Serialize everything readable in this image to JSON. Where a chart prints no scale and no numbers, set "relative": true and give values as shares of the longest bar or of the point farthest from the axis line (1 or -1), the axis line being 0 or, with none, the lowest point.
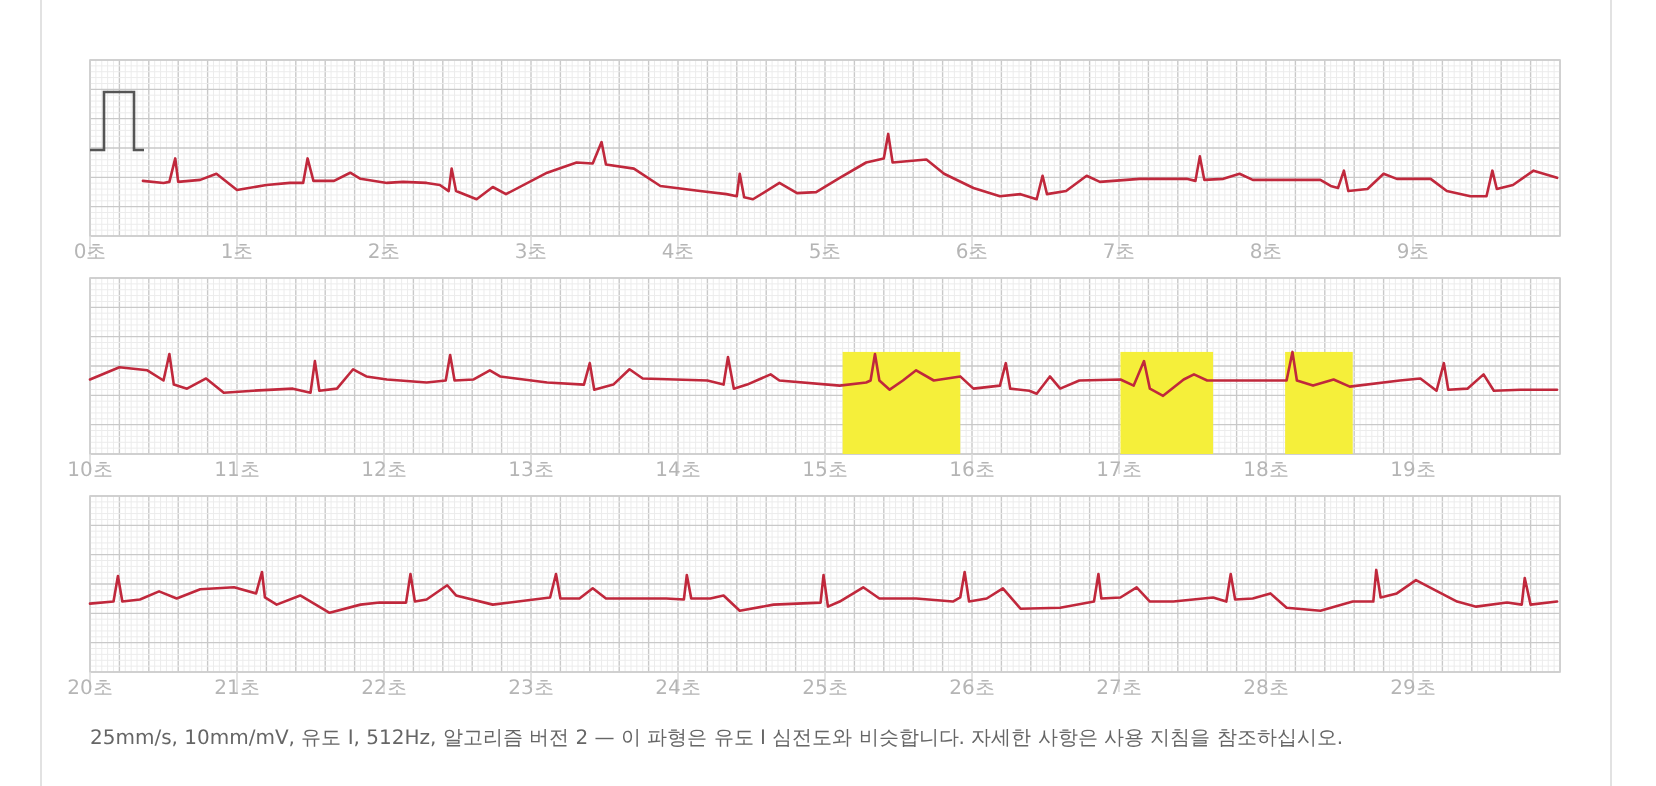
{
  "chart_data": [
    {
      "type": "line",
      "relative": true,
      "grid": true,
      "color": "#c0283c",
      "xlim": [
        0,
        10
      ],
      "xticks": [
        {
          "value": 0,
          "label": "0초"
        },
        {
          "value": 1,
          "label": "1초"
        },
        {
          "value": 2,
          "label": "2초"
        },
        {
          "value": 3,
          "label": "3초"
        },
        {
          "value": 4,
          "label": "4초"
        },
        {
          "value": 5,
          "label": "5초"
        },
        {
          "value": 6,
          "label": "6초"
        },
        {
          "value": 7,
          "label": "7초"
        },
        {
          "value": 8,
          "label": "8초"
        },
        {
          "value": 9,
          "label": "9초"
        }
      ],
      "x": [
        0.36,
        0.5,
        0.54,
        0.58,
        0.6,
        0.75,
        0.86,
        1.0,
        1.2,
        1.36,
        1.45,
        1.48,
        1.52,
        1.66,
        1.77,
        1.84,
        2.02,
        2.13,
        2.29,
        2.38,
        2.44,
        2.46,
        2.49,
        2.63,
        2.74,
        2.83,
        3.11,
        3.31,
        3.42,
        3.48,
        3.51,
        3.7,
        3.88,
        4.15,
        4.33,
        4.4,
        4.42,
        4.45,
        4.51,
        4.69,
        4.81,
        4.94,
        5.1,
        5.28,
        5.4,
        5.43,
        5.46,
        5.69,
        5.81,
        6.01,
        6.19,
        6.33,
        6.44,
        6.48,
        6.51,
        6.64,
        6.78,
        6.87,
        7.14,
        7.46,
        7.52,
        7.55,
        7.58,
        7.71,
        7.82,
        7.91,
        8.37,
        8.44,
        8.49,
        8.53,
        8.56,
        8.69,
        8.8,
        8.89,
        9.12,
        9.23,
        9.39,
        9.5,
        9.54,
        9.57,
        9.68,
        9.82,
        9.98
      ],
      "values": [
        0.54,
        0.52,
        0.53,
        0.76,
        0.53,
        0.55,
        0.61,
        0.45,
        0.5,
        0.52,
        0.52,
        0.76,
        0.54,
        0.54,
        0.62,
        0.56,
        0.52,
        0.53,
        0.52,
        0.5,
        0.44,
        0.66,
        0.44,
        0.36,
        0.48,
        0.41,
        0.62,
        0.72,
        0.71,
        0.92,
        0.7,
        0.66,
        0.49,
        0.44,
        0.41,
        0.39,
        0.61,
        0.38,
        0.36,
        0.52,
        0.42,
        0.43,
        0.57,
        0.72,
        0.76,
        1.0,
        0.72,
        0.75,
        0.61,
        0.47,
        0.39,
        0.41,
        0.36,
        0.59,
        0.41,
        0.44,
        0.59,
        0.53,
        0.56,
        0.56,
        0.54,
        0.78,
        0.55,
        0.56,
        0.61,
        0.55,
        0.55,
        0.49,
        0.47,
        0.64,
        0.44,
        0.46,
        0.61,
        0.56,
        0.56,
        0.44,
        0.39,
        0.39,
        0.64,
        0.46,
        0.5,
        0.64,
        0.57
      ]
    },
    {
      "type": "line",
      "relative": true,
      "grid": true,
      "color": "#c0283c",
      "xlim": [
        10,
        20
      ],
      "xticks": [
        {
          "value": 10,
          "label": "10초"
        },
        {
          "value": 11,
          "label": "11초"
        },
        {
          "value": 12,
          "label": "12초"
        },
        {
          "value": 13,
          "label": "13초"
        },
        {
          "value": 14,
          "label": "14초"
        },
        {
          "value": 15,
          "label": "15초"
        },
        {
          "value": 16,
          "label": "16초"
        },
        {
          "value": 17,
          "label": "17초"
        },
        {
          "value": 18,
          "label": "18초"
        },
        {
          "value": 19,
          "label": "19초"
        }
      ],
      "bands": [
        {
          "axis": "x",
          "from": 15.12,
          "to": 15.92,
          "color": "#f5ef3a"
        },
        {
          "axis": "x",
          "from": 17.01,
          "to": 17.64,
          "color": "#f5ef3a"
        },
        {
          "axis": "x",
          "from": 18.13,
          "to": 18.59,
          "color": "#f5ef3a"
        }
      ],
      "x": [
        10.0,
        10.2,
        10.39,
        10.5,
        10.54,
        10.57,
        10.66,
        10.79,
        10.91,
        11.11,
        11.38,
        11.5,
        11.53,
        11.56,
        11.68,
        11.79,
        11.88,
        12.02,
        12.29,
        12.42,
        12.45,
        12.48,
        12.61,
        12.72,
        12.79,
        13.11,
        13.36,
        13.4,
        13.43,
        13.56,
        13.67,
        13.76,
        14.2,
        14.31,
        14.34,
        14.38,
        14.47,
        14.63,
        14.69,
        15.1,
        15.28,
        15.31,
        15.34,
        15.37,
        15.44,
        15.53,
        15.62,
        15.74,
        15.92,
        16.01,
        16.19,
        16.23,
        16.26,
        16.39,
        16.44,
        16.53,
        16.6,
        16.73,
        17.01,
        17.1,
        17.17,
        17.21,
        17.3,
        17.44,
        17.51,
        17.6,
        18.0,
        18.14,
        18.18,
        18.21,
        18.32,
        18.46,
        18.57,
        18.91,
        19.05,
        19.16,
        19.21,
        19.24,
        19.37,
        19.48,
        19.55,
        19.73,
        19.98
      ],
      "values": [
        0.73,
        0.85,
        0.82,
        0.72,
        0.98,
        0.68,
        0.64,
        0.74,
        0.6,
        0.62,
        0.64,
        0.6,
        0.91,
        0.62,
        0.64,
        0.83,
        0.76,
        0.73,
        0.7,
        0.72,
        0.97,
        0.72,
        0.73,
        0.82,
        0.76,
        0.7,
        0.68,
        0.89,
        0.63,
        0.68,
        0.83,
        0.74,
        0.72,
        0.68,
        0.95,
        0.64,
        0.68,
        0.78,
        0.72,
        0.67,
        0.7,
        0.72,
        0.98,
        0.72,
        0.63,
        0.72,
        0.82,
        0.72,
        0.76,
        0.64,
        0.67,
        0.89,
        0.64,
        0.62,
        0.59,
        0.76,
        0.64,
        0.72,
        0.73,
        0.67,
        0.91,
        0.64,
        0.57,
        0.73,
        0.78,
        0.72,
        0.72,
        0.72,
        1.0,
        0.72,
        0.67,
        0.73,
        0.66,
        0.72,
        0.74,
        0.62,
        0.89,
        0.63,
        0.64,
        0.78,
        0.62,
        0.63,
        0.63
      ]
    },
    {
      "type": "line",
      "relative": true,
      "grid": true,
      "color": "#c0283c",
      "xlim": [
        20,
        30
      ],
      "xticks": [
        {
          "value": 20,
          "label": "20초"
        },
        {
          "value": 21,
          "label": "21초"
        },
        {
          "value": 22,
          "label": "22초"
        },
        {
          "value": 23,
          "label": "23초"
        },
        {
          "value": 24,
          "label": "24초"
        },
        {
          "value": 25,
          "label": "25초"
        },
        {
          "value": 26,
          "label": "26초"
        },
        {
          "value": 27,
          "label": "27초"
        },
        {
          "value": 28,
          "label": "28초"
        },
        {
          "value": 29,
          "label": "29초"
        }
      ],
      "annotations": [
        "25mm/s, 10mm/mV, 유도 I, 512Hz, 알고리즘 버전 2 — 이 파형은 유도 I 심전도와 비슷합니다. 자세한 사항은 사용 지침을 참조하십시오."
      ],
      "x": [
        20.0,
        20.16,
        20.19,
        20.22,
        20.34,
        20.47,
        20.59,
        20.75,
        20.98,
        21.13,
        21.17,
        21.19,
        21.27,
        21.43,
        21.63,
        21.84,
        21.97,
        22.15,
        22.18,
        22.21,
        22.29,
        22.43,
        22.49,
        22.74,
        23.02,
        23.13,
        23.17,
        23.2,
        23.33,
        23.42,
        23.51,
        23.92,
        24.04,
        24.06,
        24.09,
        24.22,
        24.31,
        24.42,
        24.65,
        24.97,
        24.99,
        25.02,
        25.1,
        25.26,
        25.37,
        25.62,
        25.87,
        25.92,
        25.95,
        25.98,
        26.1,
        26.21,
        26.33,
        26.6,
        26.83,
        26.86,
        26.88,
        27.01,
        27.12,
        27.21,
        27.37,
        27.64,
        27.73,
        27.76,
        27.79,
        27.91,
        28.03,
        28.14,
        28.37,
        28.59,
        28.73,
        28.75,
        28.78,
        28.89,
        29.02,
        29.14,
        29.3,
        29.43,
        29.64,
        29.74,
        29.76,
        29.8,
        29.98
      ],
      "values": [
        0.67,
        0.69,
        0.94,
        0.69,
        0.71,
        0.79,
        0.72,
        0.81,
        0.83,
        0.77,
        0.98,
        0.73,
        0.66,
        0.75,
        0.58,
        0.66,
        0.68,
        0.68,
        0.96,
        0.69,
        0.71,
        0.85,
        0.75,
        0.66,
        0.71,
        0.73,
        0.96,
        0.72,
        0.72,
        0.82,
        0.72,
        0.72,
        0.71,
        0.95,
        0.72,
        0.72,
        0.75,
        0.6,
        0.66,
        0.68,
        0.95,
        0.64,
        0.69,
        0.83,
        0.72,
        0.72,
        0.69,
        0.73,
        0.98,
        0.69,
        0.72,
        0.82,
        0.62,
        0.63,
        0.69,
        0.96,
        0.72,
        0.73,
        0.83,
        0.69,
        0.69,
        0.73,
        0.69,
        0.96,
        0.71,
        0.72,
        0.77,
        0.63,
        0.6,
        0.69,
        0.69,
        1.0,
        0.73,
        0.77,
        0.9,
        0.81,
        0.69,
        0.64,
        0.68,
        0.66,
        0.92,
        0.66,
        0.69
      ]
    }
  ]
}
